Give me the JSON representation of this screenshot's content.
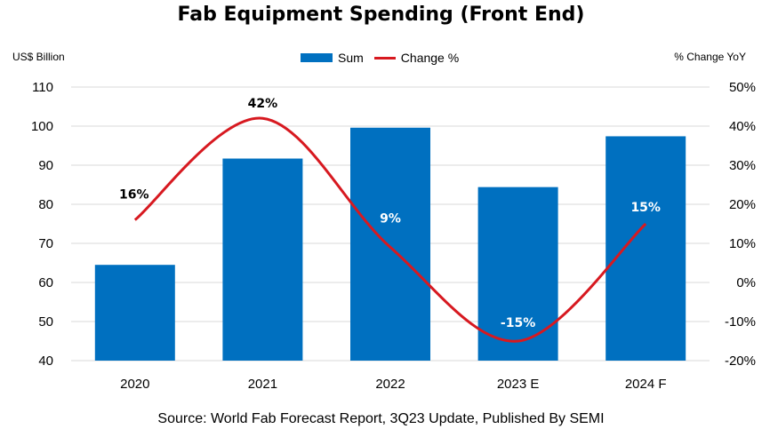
{
  "title": "Fab Equipment Spending (Front End)",
  "left_axis_unit": "US$ Billion",
  "right_axis_unit": "% Change YoY",
  "source": "Source: World Fab Forecast Report, 3Q23 Update, Published By SEMI",
  "colors": {
    "bar": "#0070C0",
    "line": "#D71920",
    "grid": "#d9d9d9"
  },
  "chart_data": {
    "type": "bar",
    "categories": [
      "2020",
      "2021",
      "2022",
      "2023 E",
      "2024 F"
    ],
    "series": [
      {
        "name": "Sum",
        "type": "bar",
        "axis": "left",
        "values": [
          64.5,
          91.7,
          99.6,
          84.4,
          97.4
        ]
      },
      {
        "name": "Change %",
        "type": "line",
        "axis": "right",
        "values": [
          16,
          42,
          9,
          -15,
          15
        ],
        "data_labels": [
          "16%",
          "42%",
          "9%",
          "-15%",
          "15%"
        ]
      }
    ],
    "ylim": [
      40,
      110
    ],
    "yticks": [
      "40",
      "50",
      "60",
      "70",
      "80",
      "90",
      "100",
      "110"
    ],
    "y2lim": [
      -20,
      50
    ],
    "y2ticks": [
      "-20%",
      "-10%",
      "0%",
      "10%",
      "20%",
      "30%",
      "40%",
      "50%"
    ],
    "grid": true,
    "legend": "top-center"
  }
}
